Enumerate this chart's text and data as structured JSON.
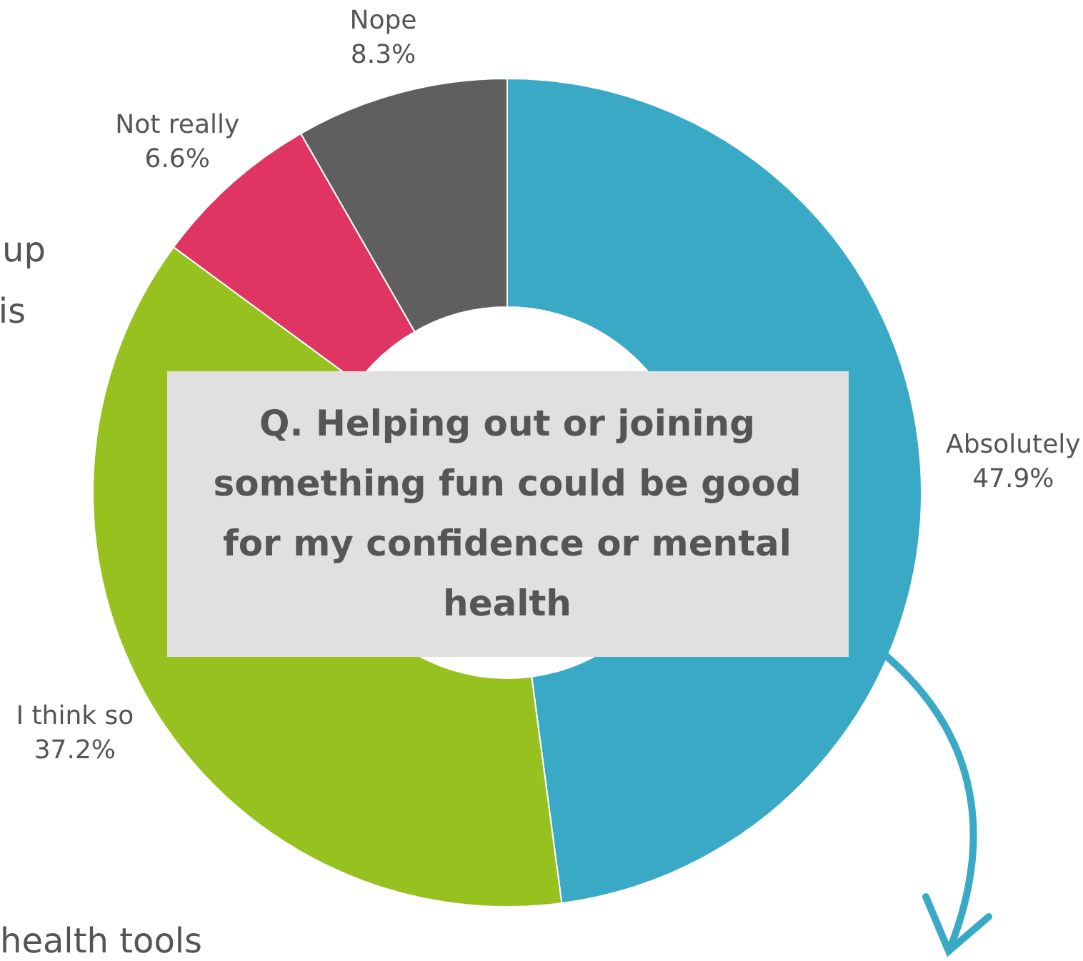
{
  "chart_data": {
    "type": "donut",
    "title": "Q. Helping out or joining something fun could be good for my confidence or mental health",
    "categories": [
      "Absolutely",
      "I think so",
      "Not really",
      "Nope"
    ],
    "values": [
      47.9,
      37.2,
      6.6,
      8.3
    ],
    "colors": [
      "#3aa9c6",
      "#96c11f",
      "#e03562",
      "#5f5f5f"
    ],
    "value_labels": [
      "47.9%",
      "37.2%",
      "6.6%",
      "8.3%"
    ],
    "annotations": [
      "up",
      "is",
      "health tools"
    ]
  }
}
